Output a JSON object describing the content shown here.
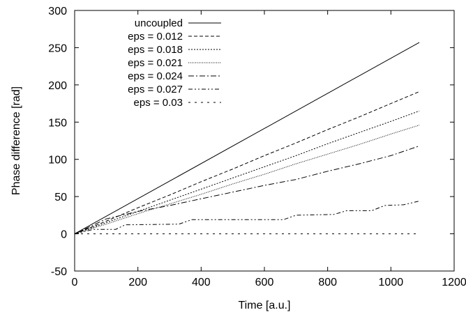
{
  "chart_data": {
    "type": "line",
    "xlabel": "Time [a.u.]",
    "ylabel": "Phase difference [rad]",
    "xlim": [
      0,
      1200
    ],
    "ylim": [
      -50,
      300
    ],
    "xticks": [
      0,
      200,
      400,
      600,
      800,
      1000,
      1200
    ],
    "yticks": [
      -50,
      0,
      50,
      100,
      150,
      200,
      250,
      300
    ],
    "xtick_labels": [
      "0",
      "200",
      "400",
      "600",
      "800",
      "1000",
      "1200"
    ],
    "ytick_labels": [
      "-50",
      "0",
      "50",
      "100",
      "150",
      "200",
      "250",
      "300"
    ],
    "grid": false,
    "legend_position": "top-left",
    "series": [
      {
        "name": "uncoupled",
        "dash": "solid",
        "points": [
          [
            0,
            0
          ],
          [
            1090,
            257
          ]
        ]
      },
      {
        "name": "eps = 0.012",
        "dash": "dashed",
        "points": [
          [
            0,
            0
          ],
          [
            100,
            17
          ],
          [
            200,
            35
          ],
          [
            300,
            52
          ],
          [
            400,
            70
          ],
          [
            500,
            87
          ],
          [
            600,
            105
          ],
          [
            700,
            122
          ],
          [
            800,
            140
          ],
          [
            900,
            157
          ],
          [
            1000,
            175
          ],
          [
            1090,
            191
          ]
        ]
      },
      {
        "name": "eps = 0.018",
        "dash": "dotted",
        "points": [
          [
            0,
            0
          ],
          [
            100,
            15
          ],
          [
            200,
            30
          ],
          [
            300,
            45
          ],
          [
            400,
            60
          ],
          [
            500,
            75
          ],
          [
            600,
            90
          ],
          [
            700,
            105
          ],
          [
            800,
            121
          ],
          [
            900,
            136
          ],
          [
            1000,
            151
          ],
          [
            1090,
            165
          ]
        ]
      },
      {
        "name": "eps = 0.021",
        "dash": "fine-dotted",
        "points": [
          [
            0,
            0
          ],
          [
            100,
            13
          ],
          [
            200,
            27
          ],
          [
            300,
            40
          ],
          [
            400,
            53
          ],
          [
            500,
            67
          ],
          [
            600,
            80
          ],
          [
            700,
            94
          ],
          [
            800,
            107
          ],
          [
            900,
            120
          ],
          [
            1000,
            134
          ],
          [
            1090,
            146
          ]
        ]
      },
      {
        "name": "eps = 0.024",
        "dash": "dash-dot",
        "points": [
          [
            0,
            0
          ],
          [
            100,
            20
          ],
          [
            200,
            30
          ],
          [
            250,
            34
          ],
          [
            300,
            38
          ],
          [
            400,
            47
          ],
          [
            500,
            56
          ],
          [
            600,
            65
          ],
          [
            700,
            73
          ],
          [
            800,
            84
          ],
          [
            900,
            94
          ],
          [
            1000,
            105
          ],
          [
            1090,
            118
          ]
        ]
      },
      {
        "name": "eps = 0.027",
        "dash": "dash-dot-dot",
        "points": [
          [
            0,
            0
          ],
          [
            60,
            6
          ],
          [
            130,
            6
          ],
          [
            160,
            12
          ],
          [
            330,
            13
          ],
          [
            370,
            19
          ],
          [
            660,
            19
          ],
          [
            700,
            25
          ],
          [
            820,
            26
          ],
          [
            860,
            31
          ],
          [
            940,
            31
          ],
          [
            980,
            38
          ],
          [
            1040,
            39
          ],
          [
            1090,
            44
          ]
        ]
      },
      {
        "name": "eps = 0.03",
        "dash": "sparse-dashed",
        "points": [
          [
            0,
            0
          ],
          [
            1090,
            0
          ]
        ]
      }
    ]
  }
}
